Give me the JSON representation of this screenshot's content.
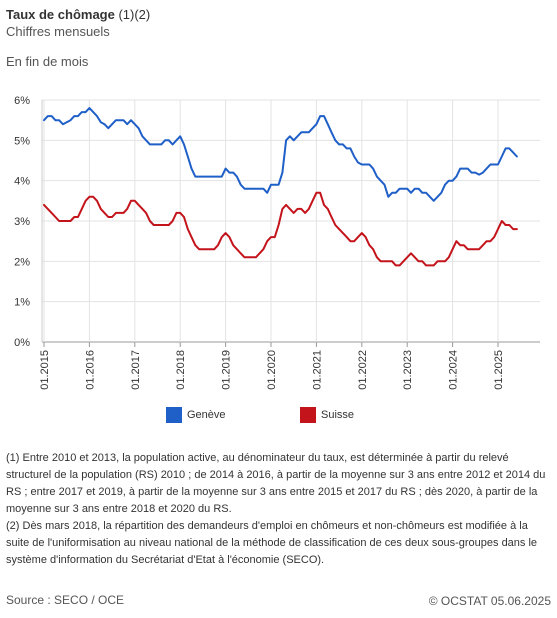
{
  "header": {
    "title_bold": "Taux de chômage",
    "title_suffix": " (1)(2)",
    "subtitle": "Chiffres mensuels",
    "period_label": "En fin de mois"
  },
  "chart_data": {
    "type": "line",
    "ylim": [
      0,
      6
    ],
    "yticks": [
      "0%",
      "1%",
      "2%",
      "3%",
      "4%",
      "5%",
      "6%"
    ],
    "xticks": [
      "01.2015",
      "01.2016",
      "01.2017",
      "01.2018",
      "01.2019",
      "01.2020",
      "01.2021",
      "01.2022",
      "01.2023",
      "01.2024",
      "01.2025"
    ],
    "x_start": "01.2015",
    "x_end": "05.2025",
    "grid": true,
    "legend_position": "bottom",
    "series": [
      {
        "name": "Genève",
        "color": "#1f5fc8",
        "values": [
          5.5,
          5.6,
          5.6,
          5.5,
          5.5,
          5.4,
          5.45,
          5.5,
          5.6,
          5.6,
          5.7,
          5.7,
          5.8,
          5.7,
          5.6,
          5.45,
          5.4,
          5.3,
          5.4,
          5.5,
          5.5,
          5.5,
          5.4,
          5.5,
          5.4,
          5.3,
          5.1,
          5.0,
          4.9,
          4.9,
          4.9,
          4.9,
          5.0,
          5.0,
          4.9,
          5.0,
          5.1,
          4.9,
          4.6,
          4.3,
          4.1,
          4.1,
          4.1,
          4.1,
          4.1,
          4.1,
          4.1,
          4.1,
          4.3,
          4.2,
          4.2,
          4.1,
          3.9,
          3.8,
          3.8,
          3.8,
          3.8,
          3.8,
          3.8,
          3.7,
          3.9,
          3.9,
          3.9,
          4.2,
          5.0,
          5.1,
          5.0,
          5.1,
          5.2,
          5.2,
          5.2,
          5.3,
          5.4,
          5.6,
          5.6,
          5.4,
          5.2,
          5.0,
          4.9,
          4.9,
          4.8,
          4.8,
          4.6,
          4.45,
          4.4,
          4.4,
          4.4,
          4.3,
          4.1,
          4.0,
          3.9,
          3.6,
          3.7,
          3.7,
          3.8,
          3.8,
          3.8,
          3.7,
          3.8,
          3.8,
          3.7,
          3.7,
          3.6,
          3.5,
          3.6,
          3.7,
          3.9,
          4.0,
          4.0,
          4.1,
          4.3,
          4.3,
          4.3,
          4.2,
          4.2,
          4.15,
          4.2,
          4.3,
          4.4,
          4.4,
          4.4,
          4.6,
          4.8,
          4.8,
          4.7,
          4.6
        ]
      },
      {
        "name": "Suisse",
        "color": "#c4141b",
        "values": [
          3.4,
          3.3,
          3.2,
          3.1,
          3.0,
          3.0,
          3.0,
          3.0,
          3.1,
          3.1,
          3.3,
          3.5,
          3.6,
          3.6,
          3.5,
          3.3,
          3.2,
          3.1,
          3.1,
          3.2,
          3.2,
          3.2,
          3.3,
          3.5,
          3.5,
          3.4,
          3.3,
          3.2,
          3.0,
          2.9,
          2.9,
          2.9,
          2.9,
          2.9,
          3.0,
          3.2,
          3.2,
          3.1,
          2.8,
          2.6,
          2.4,
          2.3,
          2.3,
          2.3,
          2.3,
          2.3,
          2.4,
          2.6,
          2.7,
          2.6,
          2.4,
          2.3,
          2.2,
          2.1,
          2.1,
          2.1,
          2.1,
          2.2,
          2.3,
          2.5,
          2.6,
          2.6,
          2.9,
          3.3,
          3.4,
          3.3,
          3.2,
          3.3,
          3.3,
          3.2,
          3.3,
          3.5,
          3.7,
          3.7,
          3.4,
          3.3,
          3.1,
          2.9,
          2.8,
          2.7,
          2.6,
          2.5,
          2.5,
          2.6,
          2.7,
          2.6,
          2.4,
          2.3,
          2.1,
          2.0,
          2.0,
          2.0,
          2.0,
          1.9,
          1.9,
          2.0,
          2.1,
          2.2,
          2.1,
          2.0,
          2.0,
          1.9,
          1.9,
          1.9,
          2.0,
          2.0,
          2.0,
          2.1,
          2.3,
          2.5,
          2.4,
          2.4,
          2.3,
          2.3,
          2.3,
          2.3,
          2.4,
          2.5,
          2.5,
          2.6,
          2.8,
          3.0,
          2.9,
          2.9,
          2.8,
          2.8
        ]
      }
    ]
  },
  "notes": [
    "(1) Entre 2010 et 2013, la population active, au dénominateur du taux, est déterminée à partir du relevé structurel de la population (RS) 2010 ; de 2014 à 2016, à partir de la moyenne sur 3 ans entre 2012 et 2014 du RS ; entre 2017 et 2019, à partir de la moyenne sur 3 ans entre 2015 et 2017 du RS ; dès 2020, à partir de la moyenne sur 3 ans entre 2018 et 2020 du RS.",
    "(2) Dès mars 2018, la répartition des demandeurs d'emploi en chômeurs et non-chômeurs est modifiée à la suite de l'uniformisation au niveau national de la méthode de classification de ces deux sous-groupes dans le système d'information du Secrétariat d'Etat à l'économie (SECO)."
  ],
  "footer": {
    "source": "Source : SECO / OCE",
    "copyright": "© OCSTAT 05.06.2025"
  }
}
